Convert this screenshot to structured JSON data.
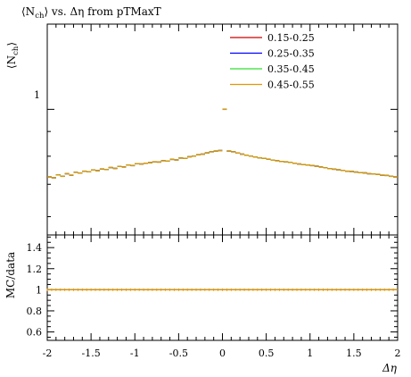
{
  "chart_data": [
    {
      "panel": "main",
      "type": "scatter",
      "title_parts": {
        "lhs": "⟨N",
        "sub": "ch",
        "rhs": "⟩ vs. Δη from pTMaxT"
      },
      "ylabel_parts": {
        "lhs": "⟨N",
        "sub": "ch",
        "rhs": "⟩"
      },
      "xlim": [
        -2,
        2
      ],
      "yscale": "log",
      "ylim": [
        0.55,
        1.5
      ],
      "yticks_major": [
        1
      ],
      "legend_position": "top-right",
      "series": [
        {
          "name": "0.15-0.25",
          "color": "#cc0000"
        },
        {
          "name": "0.25-0.35",
          "color": "#0000ff"
        },
        {
          "name": "0.35-0.45",
          "color": "#33dd33"
        },
        {
          "name": "0.45-0.55",
          "color": "#e69500"
        }
      ],
      "x": [
        -1.975,
        -1.925,
        -1.875,
        -1.825,
        -1.775,
        -1.725,
        -1.675,
        -1.625,
        -1.575,
        -1.525,
        -1.475,
        -1.425,
        -1.375,
        -1.325,
        -1.275,
        -1.225,
        -1.175,
        -1.125,
        -1.075,
        -1.025,
        -0.975,
        -0.925,
        -0.875,
        -0.825,
        -0.775,
        -0.725,
        -0.675,
        -0.625,
        -0.575,
        -0.525,
        -0.475,
        -0.425,
        -0.375,
        -0.325,
        -0.275,
        -0.225,
        -0.175,
        -0.125,
        -0.075,
        -0.025,
        0.025,
        0.075,
        0.125,
        0.175,
        0.225,
        0.275,
        0.325,
        0.375,
        0.425,
        0.475,
        0.525,
        0.575,
        0.625,
        0.675,
        0.725,
        0.775,
        0.825,
        0.875,
        0.925,
        0.975,
        1.025,
        1.075,
        1.125,
        1.175,
        1.225,
        1.275,
        1.325,
        1.375,
        1.425,
        1.475,
        1.525,
        1.575,
        1.625,
        1.675,
        1.725,
        1.775,
        1.825,
        1.875,
        1.925,
        1.975
      ],
      "y": [
        0.725,
        0.722,
        0.732,
        0.727,
        0.736,
        0.731,
        0.741,
        0.738,
        0.745,
        0.743,
        0.749,
        0.747,
        0.753,
        0.751,
        0.758,
        0.755,
        0.762,
        0.76,
        0.767,
        0.765,
        0.772,
        0.771,
        0.774,
        0.776,
        0.779,
        0.778,
        0.783,
        0.782,
        0.788,
        0.786,
        0.793,
        0.792,
        0.798,
        0.8,
        0.806,
        0.808,
        0.813,
        0.817,
        0.82,
        0.822,
        1.0,
        0.82,
        0.817,
        0.812,
        0.808,
        0.804,
        0.8,
        0.797,
        0.794,
        0.792,
        0.789,
        0.785,
        0.783,
        0.78,
        0.779,
        0.777,
        0.774,
        0.771,
        0.769,
        0.767,
        0.765,
        0.763,
        0.76,
        0.757,
        0.754,
        0.752,
        0.75,
        0.748,
        0.745,
        0.744,
        0.742,
        0.74,
        0.739,
        0.736,
        0.735,
        0.734,
        0.731,
        0.73,
        0.727,
        0.725
      ]
    },
    {
      "panel": "ratio",
      "type": "line",
      "ylabel": "MC/data",
      "xlabel": "Δη",
      "xlim": [
        -2,
        2
      ],
      "ylim": [
        0.52,
        1.52
      ],
      "xticks": [
        "-2",
        "-1.5",
        "-1",
        "-0.5",
        "0",
        "0.5",
        "1",
        "1.5",
        "2"
      ],
      "yticks": [
        "0.6",
        "0.8",
        "1",
        "1.2",
        "1.4"
      ],
      "reference_value": 1.0
    }
  ],
  "main_ytick_label": "1"
}
